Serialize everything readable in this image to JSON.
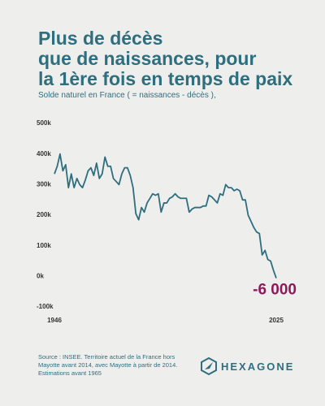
{
  "chart_data": {
    "type": "line",
    "title": [
      "Plus de décès",
      "que de naissances, pour",
      "la 1ère fois en temps de paix"
    ],
    "subtitle": "Solde naturel en France ( = naissances - décès ),",
    "x": [
      1946,
      1947,
      1948,
      1949,
      1950,
      1951,
      1952,
      1953,
      1954,
      1955,
      1956,
      1957,
      1958,
      1959,
      1960,
      1961,
      1962,
      1963,
      1964,
      1965,
      1966,
      1967,
      1968,
      1969,
      1970,
      1971,
      1972,
      1973,
      1974,
      1975,
      1976,
      1977,
      1978,
      1979,
      1980,
      1981,
      1982,
      1983,
      1984,
      1985,
      1986,
      1987,
      1988,
      1989,
      1990,
      1991,
      1992,
      1993,
      1994,
      1995,
      1996,
      1997,
      1998,
      1999,
      2000,
      2001,
      2002,
      2003,
      2004,
      2005,
      2006,
      2007,
      2008,
      2009,
      2010,
      2011,
      2012,
      2013,
      2014,
      2015,
      2016,
      2017,
      2018,
      2019,
      2020,
      2021,
      2022,
      2023,
      2024,
      2025
    ],
    "series": [
      {
        "color": "#2e6e7e",
        "values": [
          335000,
          360000,
          400000,
          345000,
          365000,
          290000,
          335000,
          290000,
          320000,
          300000,
          290000,
          315000,
          345000,
          355000,
          330000,
          370000,
          320000,
          335000,
          390000,
          360000,
          360000,
          320000,
          310000,
          300000,
          335000,
          355000,
          355000,
          330000,
          290000,
          205000,
          185000,
          225000,
          210000,
          240000,
          255000,
          270000,
          265000,
          270000,
          210000,
          240000,
          240000,
          255000,
          260000,
          270000,
          260000,
          255000,
          255000,
          255000,
          210000,
          220000,
          225000,
          225000,
          225000,
          230000,
          230000,
          265000,
          260000,
          250000,
          240000,
          270000,
          265000,
          300000,
          290000,
          290000,
          280000,
          285000,
          280000,
          250000,
          250000,
          200000,
          180000,
          160000,
          145000,
          140000,
          70000,
          85000,
          55000,
          50000,
          20000,
          -6000
        ]
      }
    ],
    "xlim": [
      1946,
      2025
    ],
    "xticks": [
      1946,
      2025
    ],
    "ylim": [
      -100000,
      500000
    ],
    "yticks": [
      {
        "value": -100000,
        "label": "-100k"
      },
      {
        "value": 0,
        "label": "0k"
      },
      {
        "value": 100000,
        "label": "100k"
      },
      {
        "value": 200000,
        "label": "200k"
      },
      {
        "value": 300000,
        "label": "300k"
      },
      {
        "value": 400000,
        "label": "400k"
      },
      {
        "value": 500000,
        "label": "500k"
      }
    ],
    "annotations": [
      {
        "x": 2025,
        "y": -6000,
        "text": "-6 000",
        "color": "#8b1a5a"
      }
    ]
  },
  "source": [
    "Source : INSEE. Territoire actuel de la France hors",
    "Mayotte avant 2014, avec Mayotte à partir de 2014.",
    "Estimations avant 1965"
  ],
  "logo": "HEXAGONE"
}
